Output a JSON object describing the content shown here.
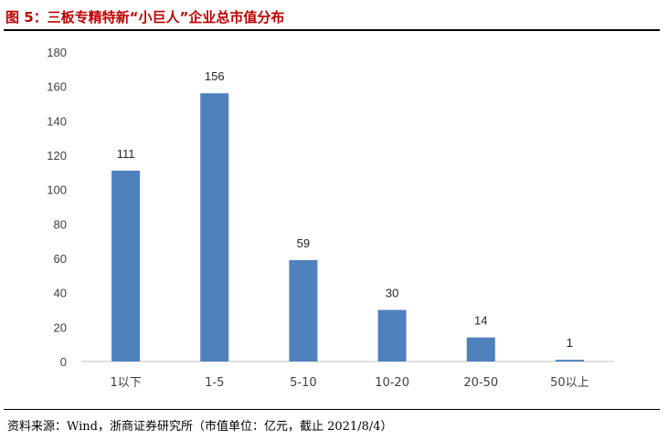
{
  "figure": {
    "title": "图 5：三板专精特新“小巨人”企业总市值分布",
    "source": "资料来源：Wind，浙商证券研究所（市值单位：亿元，截止 2021/8/4）"
  },
  "colors": {
    "title": "#c00000",
    "bar": "#4f81bd",
    "axis": "#bfbfbf",
    "rule": "#000000"
  },
  "chart_data": {
    "type": "bar",
    "categories": [
      "1以下",
      "1-5",
      "5-10",
      "10-20",
      "20-50",
      "50以上"
    ],
    "values": [
      111,
      156,
      59,
      30,
      14,
      1
    ],
    "data_labels": [
      "111",
      "156",
      "59",
      "30",
      "14",
      "1"
    ],
    "title": "",
    "xlabel": "",
    "ylabel": "",
    "ylim": [
      0,
      180
    ],
    "yticks": [
      0,
      20,
      40,
      60,
      80,
      100,
      120,
      140,
      160,
      180
    ],
    "grid": false,
    "legend": "none"
  }
}
